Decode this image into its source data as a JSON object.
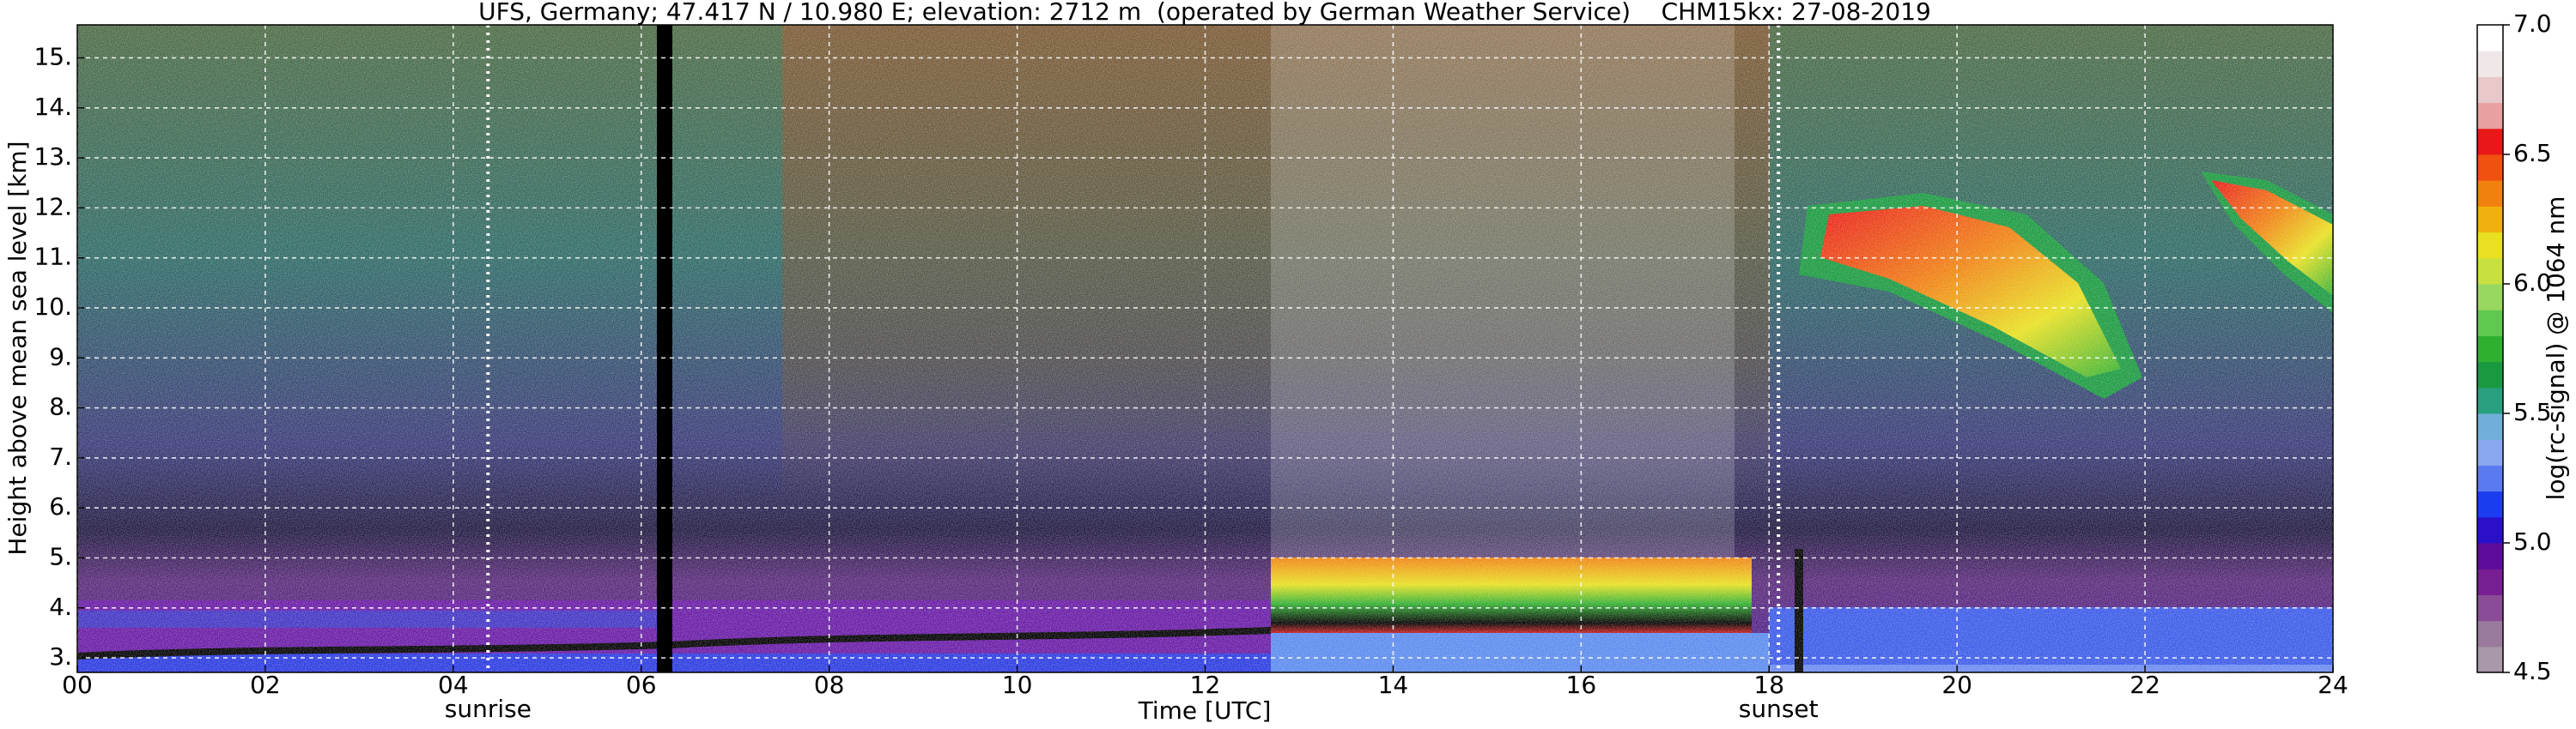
{
  "chart_data": {
    "type": "heatmap",
    "title": "UFS, Germany; 47.417 N / 10.980 E; elevation: 2712 m  (operated by German Weather Service)    CHM15kx: 27-08-2019",
    "x_label": "Time [UTC]",
    "y_label": "Height above mean sea level [km]",
    "xlim": [
      0,
      24
    ],
    "ylim": [
      2.71,
      15.66
    ],
    "xticks": [
      {
        "value": 0,
        "label": "00"
      },
      {
        "value": 2,
        "label": "02"
      },
      {
        "value": 4,
        "label": "04"
      },
      {
        "value": 6,
        "label": "06"
      },
      {
        "value": 8,
        "label": "08"
      },
      10,
      12,
      14,
      16,
      18,
      20,
      22,
      24
    ],
    "yticks": [
      {
        "value": 3,
        "label": "3."
      },
      {
        "value": 4,
        "label": "4."
      },
      {
        "value": 5,
        "label": "5."
      },
      {
        "value": 6,
        "label": "6."
      },
      {
        "value": 7,
        "label": "7."
      },
      {
        "value": 8,
        "label": "8."
      },
      {
        "value": 9,
        "label": "9."
      },
      {
        "value": 10,
        "label": "10."
      },
      {
        "value": 11,
        "label": "11."
      },
      {
        "value": 12,
        "label": "12."
      },
      {
        "value": 13,
        "label": "13."
      },
      {
        "value": 14,
        "label": "14."
      },
      {
        "value": 15,
        "label": "15."
      }
    ],
    "grid": true,
    "annotations": [
      {
        "x": 4.37,
        "label": "sunrise"
      },
      {
        "x": 18.1,
        "label": "sunset"
      }
    ],
    "colorbar": {
      "label": "log(rc-signal) @ 1064 nm",
      "lim": [
        4.5,
        7.0
      ],
      "ticks": [
        4.5,
        {
          "value": 5,
          "label": "5.0"
        },
        5.5,
        {
          "value": 6,
          "label": "6.0"
        },
        6.5,
        {
          "value": 7,
          "label": "7.0"
        }
      ],
      "colors": [
        "#a898a8",
        "#9a7a9c",
        "#8a4c96",
        "#761e92",
        "#5e0c9c",
        "#2a10c8",
        "#1c3cf0",
        "#5a7af0",
        "#8aa8f0",
        "#70b0d8",
        "#28a080",
        "#1a9a40",
        "#30b030",
        "#60c850",
        "#98d860",
        "#c8e040",
        "#e8e020",
        "#f0b010",
        "#f08010",
        "#f05010",
        "#e81818",
        "#e8a0a0",
        "#e8c8c8",
        "#f0e8e8",
        "#ffffff"
      ]
    }
  }
}
